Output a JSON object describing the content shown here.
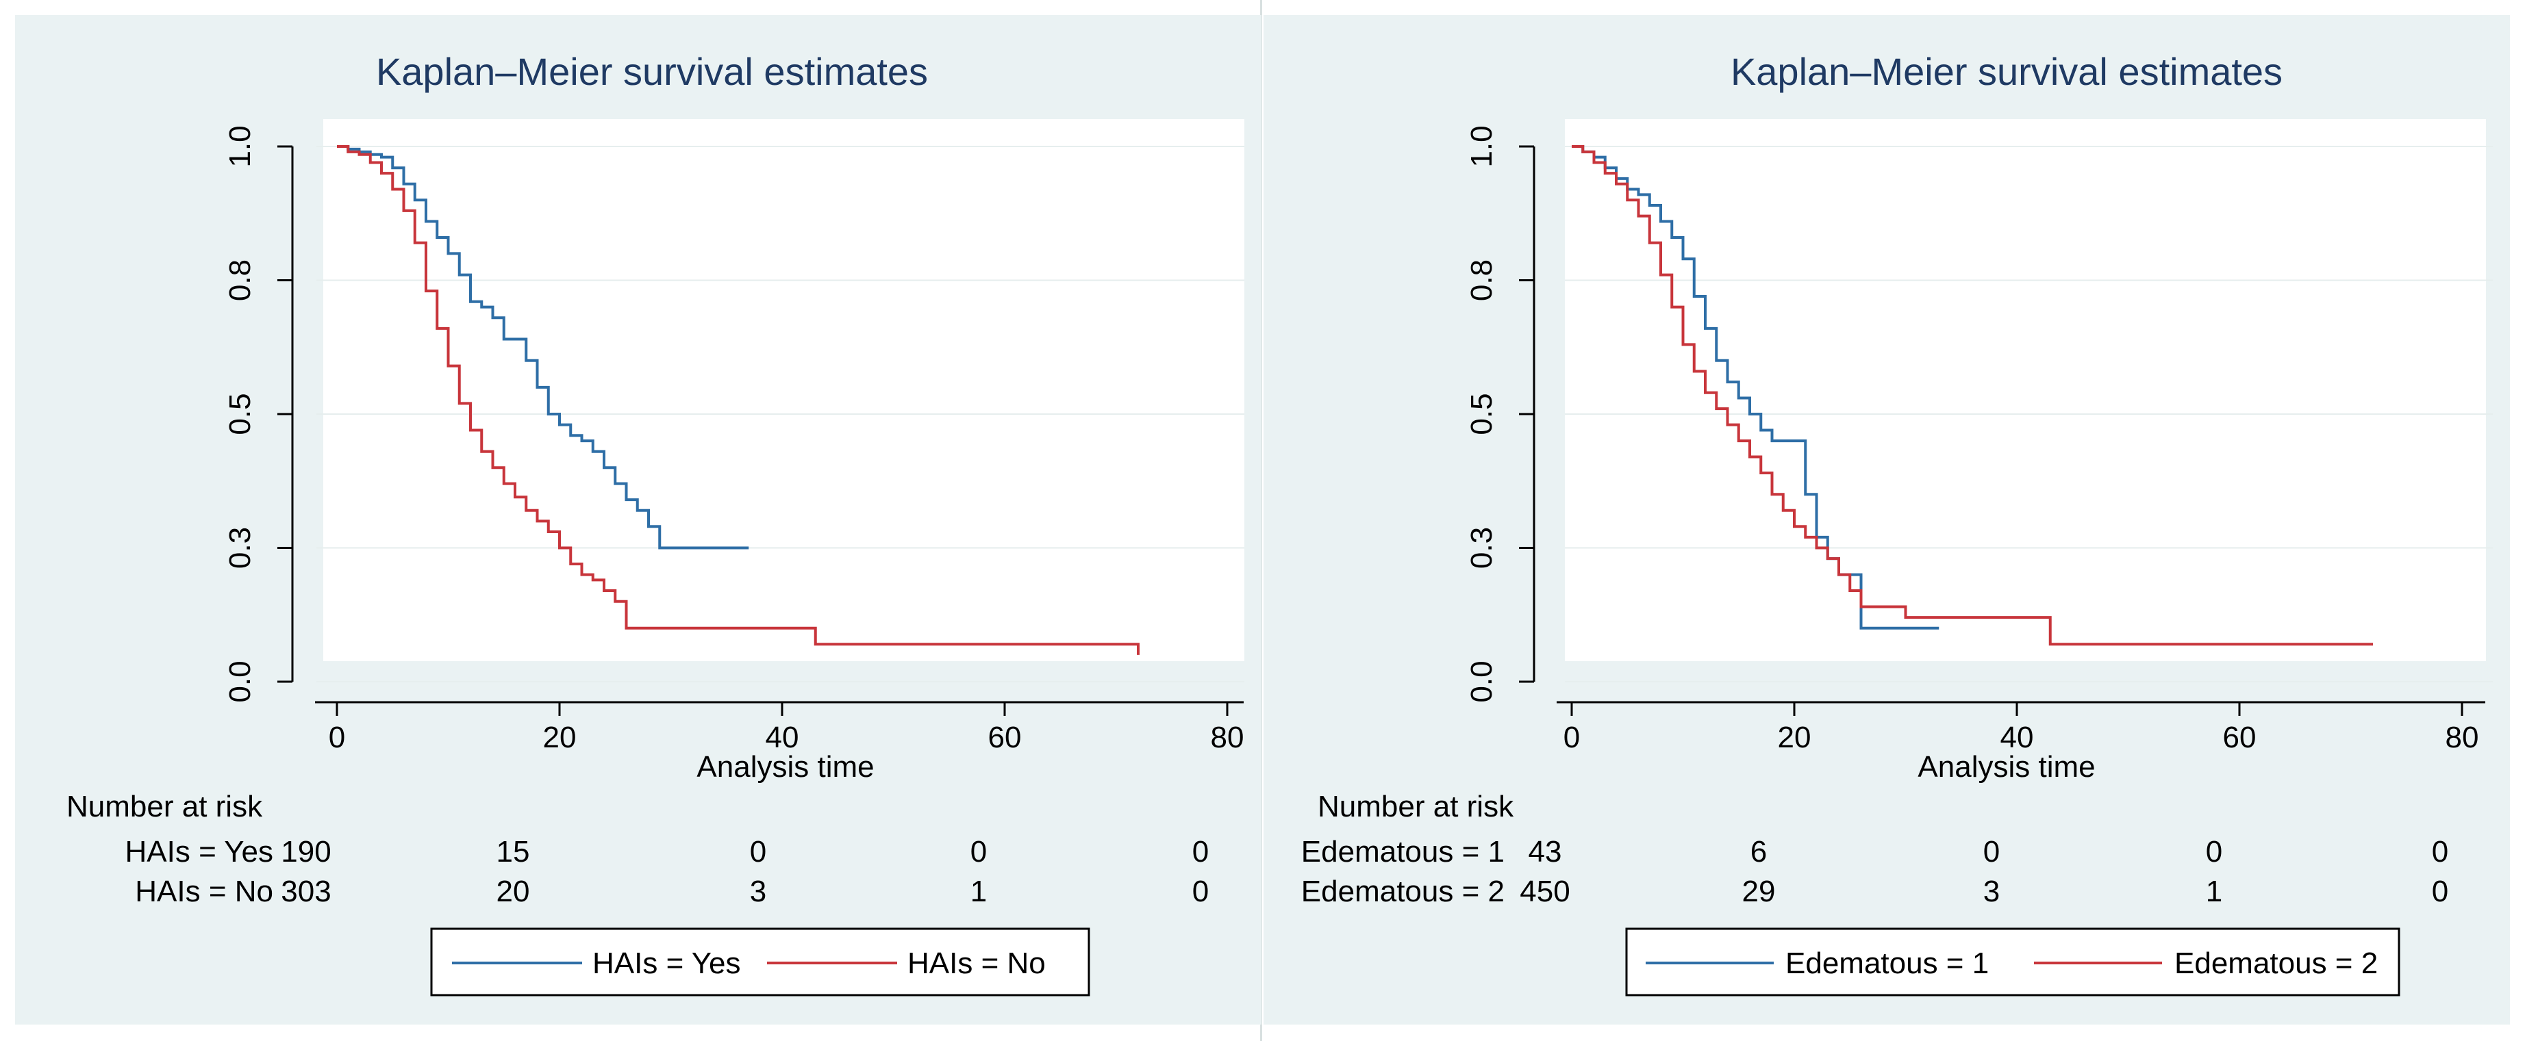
{
  "panels": [
    {
      "chart_data": {
        "type": "line",
        "step": true,
        "title": "Kaplan–Meier survival estimates",
        "xlabel": "Analysis time",
        "ylabel": "",
        "xlim": [
          0,
          80
        ],
        "ylim": [
          0,
          1
        ],
        "x_ticks": [
          0,
          20,
          40,
          60,
          80
        ],
        "x_tick_labels": [
          "0",
          "20",
          "40",
          "60",
          "80"
        ],
        "y_ticks": [
          0,
          0.25,
          0.5,
          0.75,
          1.0
        ],
        "y_tick_labels": [
          "0.0",
          "0.3",
          "0.5",
          "0.8",
          "1.0"
        ],
        "grid": true,
        "legend_position": "bottom",
        "series": [
          {
            "name": "HAIs = Yes",
            "color": "#2e6ea6",
            "x": [
              0,
              1,
              2,
              3,
              4,
              5,
              6,
              7,
              8,
              9,
              10,
              11,
              12,
              13,
              14,
              15,
              17,
              18,
              19,
              20,
              21,
              22,
              23,
              24,
              25,
              26,
              27,
              28,
              29,
              31,
              33,
              35,
              37
            ],
            "y": [
              1.0,
              0.995,
              0.99,
              0.985,
              0.98,
              0.96,
              0.93,
              0.9,
              0.86,
              0.83,
              0.8,
              0.76,
              0.71,
              0.7,
              0.68,
              0.64,
              0.6,
              0.55,
              0.5,
              0.48,
              0.46,
              0.45,
              0.43,
              0.4,
              0.37,
              0.34,
              0.32,
              0.29,
              0.25,
              0.25,
              0.25,
              0.25,
              0.25
            ]
          },
          {
            "name": "HAIs = No",
            "color": "#c8353b",
            "x": [
              0,
              1,
              2,
              3,
              4,
              5,
              6,
              7,
              8,
              9,
              10,
              11,
              12,
              13,
              14,
              15,
              16,
              17,
              18,
              19,
              20,
              21,
              22,
              23,
              24,
              25,
              26,
              43,
              72
            ],
            "y": [
              1.0,
              0.99,
              0.985,
              0.97,
              0.95,
              0.92,
              0.88,
              0.82,
              0.73,
              0.66,
              0.59,
              0.52,
              0.47,
              0.43,
              0.4,
              0.37,
              0.345,
              0.32,
              0.3,
              0.28,
              0.25,
              0.22,
              0.2,
              0.19,
              0.17,
              0.15,
              0.1,
              0.07,
              0.05
            ]
          }
        ]
      },
      "risk_table": {
        "title": "Number at risk",
        "rows": [
          {
            "label": "HAIs = Yes",
            "values": [
              "190",
              "15",
              "0",
              "0",
              "0"
            ]
          },
          {
            "label": "HAIs = No",
            "values": [
              "303",
              "20",
              "3",
              "1",
              "0"
            ]
          }
        ]
      }
    },
    {
      "chart_data": {
        "type": "line",
        "step": true,
        "title": "Kaplan–Meier survival estimates",
        "xlabel": "Analysis time",
        "ylabel": "",
        "xlim": [
          0,
          80
        ],
        "ylim": [
          0,
          1
        ],
        "x_ticks": [
          0,
          20,
          40,
          60,
          80
        ],
        "x_tick_labels": [
          "0",
          "20",
          "40",
          "60",
          "80"
        ],
        "y_ticks": [
          0,
          0.25,
          0.5,
          0.75,
          1.0
        ],
        "y_tick_labels": [
          "0.0",
          "0.3",
          "0.5",
          "0.8",
          "1.0"
        ],
        "grid": true,
        "legend_position": "bottom",
        "series": [
          {
            "name": "Edematous = 1",
            "color": "#2e6ea6",
            "x": [
              0,
              1,
              2,
              3,
              4,
              5,
              6,
              7,
              8,
              9,
              10,
              11,
              12,
              13,
              14,
              15,
              16,
              17,
              18,
              21,
              22,
              23,
              24,
              26,
              30,
              33
            ],
            "y": [
              1.0,
              0.99,
              0.98,
              0.96,
              0.94,
              0.92,
              0.91,
              0.89,
              0.86,
              0.83,
              0.79,
              0.72,
              0.66,
              0.6,
              0.56,
              0.53,
              0.5,
              0.47,
              0.45,
              0.35,
              0.27,
              0.23,
              0.2,
              0.1,
              0.1,
              0.1
            ]
          },
          {
            "name": "Edematous = 2",
            "color": "#c8353b",
            "x": [
              0,
              1,
              2,
              3,
              4,
              5,
              6,
              7,
              8,
              9,
              10,
              11,
              12,
              13,
              14,
              15,
              16,
              17,
              18,
              19,
              20,
              21,
              22,
              23,
              24,
              25,
              26,
              30,
              43,
              72
            ],
            "y": [
              1.0,
              0.99,
              0.97,
              0.95,
              0.93,
              0.9,
              0.87,
              0.82,
              0.76,
              0.7,
              0.63,
              0.58,
              0.54,
              0.51,
              0.48,
              0.45,
              0.42,
              0.39,
              0.35,
              0.32,
              0.29,
              0.27,
              0.25,
              0.23,
              0.2,
              0.17,
              0.14,
              0.12,
              0.07,
              0.07
            ]
          }
        ]
      },
      "risk_table": {
        "title": "Number at risk",
        "rows": [
          {
            "label": "Edematous = 1",
            "values": [
              "43",
              "6",
              "0",
              "0",
              "0"
            ]
          },
          {
            "label": "Edematous = 2",
            "values": [
              "450",
              "29",
              "3",
              "1",
              "0"
            ]
          }
        ]
      }
    }
  ]
}
